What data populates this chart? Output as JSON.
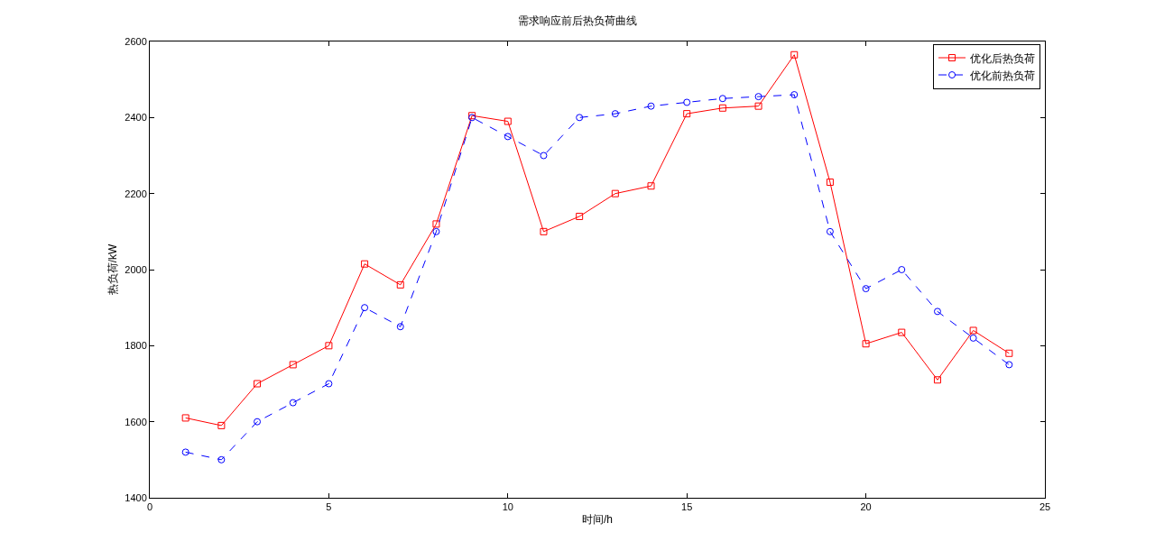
{
  "chart_data": {
    "type": "line",
    "title": "需求响应前后热负荷曲线",
    "xlabel": "时间/h",
    "ylabel": "热负荷/kW",
    "x": [
      1,
      2,
      3,
      4,
      5,
      6,
      7,
      8,
      9,
      10,
      11,
      12,
      13,
      14,
      15,
      16,
      17,
      18,
      19,
      20,
      21,
      22,
      23,
      24
    ],
    "series": [
      {
        "name": "优化后热负荷",
        "color": "#ff0000",
        "marker": "square",
        "line_style": "solid",
        "values": [
          1610,
          1590,
          1700,
          1750,
          1800,
          2015,
          1960,
          2120,
          2405,
          2390,
          2100,
          2140,
          2200,
          2220,
          2410,
          2425,
          2430,
          2565,
          2230,
          1805,
          1835,
          1710,
          1840,
          1780
        ]
      },
      {
        "name": "优化前热负荷",
        "color": "#0000ff",
        "marker": "circle",
        "line_style": "dashed",
        "values": [
          1520,
          1500,
          1600,
          1650,
          1700,
          1900,
          1850,
          2100,
          2400,
          2350,
          2300,
          2400,
          2410,
          2430,
          2440,
          2450,
          2455,
          2460,
          2100,
          1950,
          2000,
          1890,
          1820,
          1750
        ]
      }
    ],
    "xlim": [
      0,
      25
    ],
    "xticks": [
      0,
      5,
      10,
      15,
      20,
      25
    ],
    "ylim": [
      1400,
      2600
    ],
    "yticks": [
      1400,
      1600,
      1800,
      2000,
      2200,
      2400,
      2600
    ],
    "grid": false,
    "legend": "top right"
  }
}
